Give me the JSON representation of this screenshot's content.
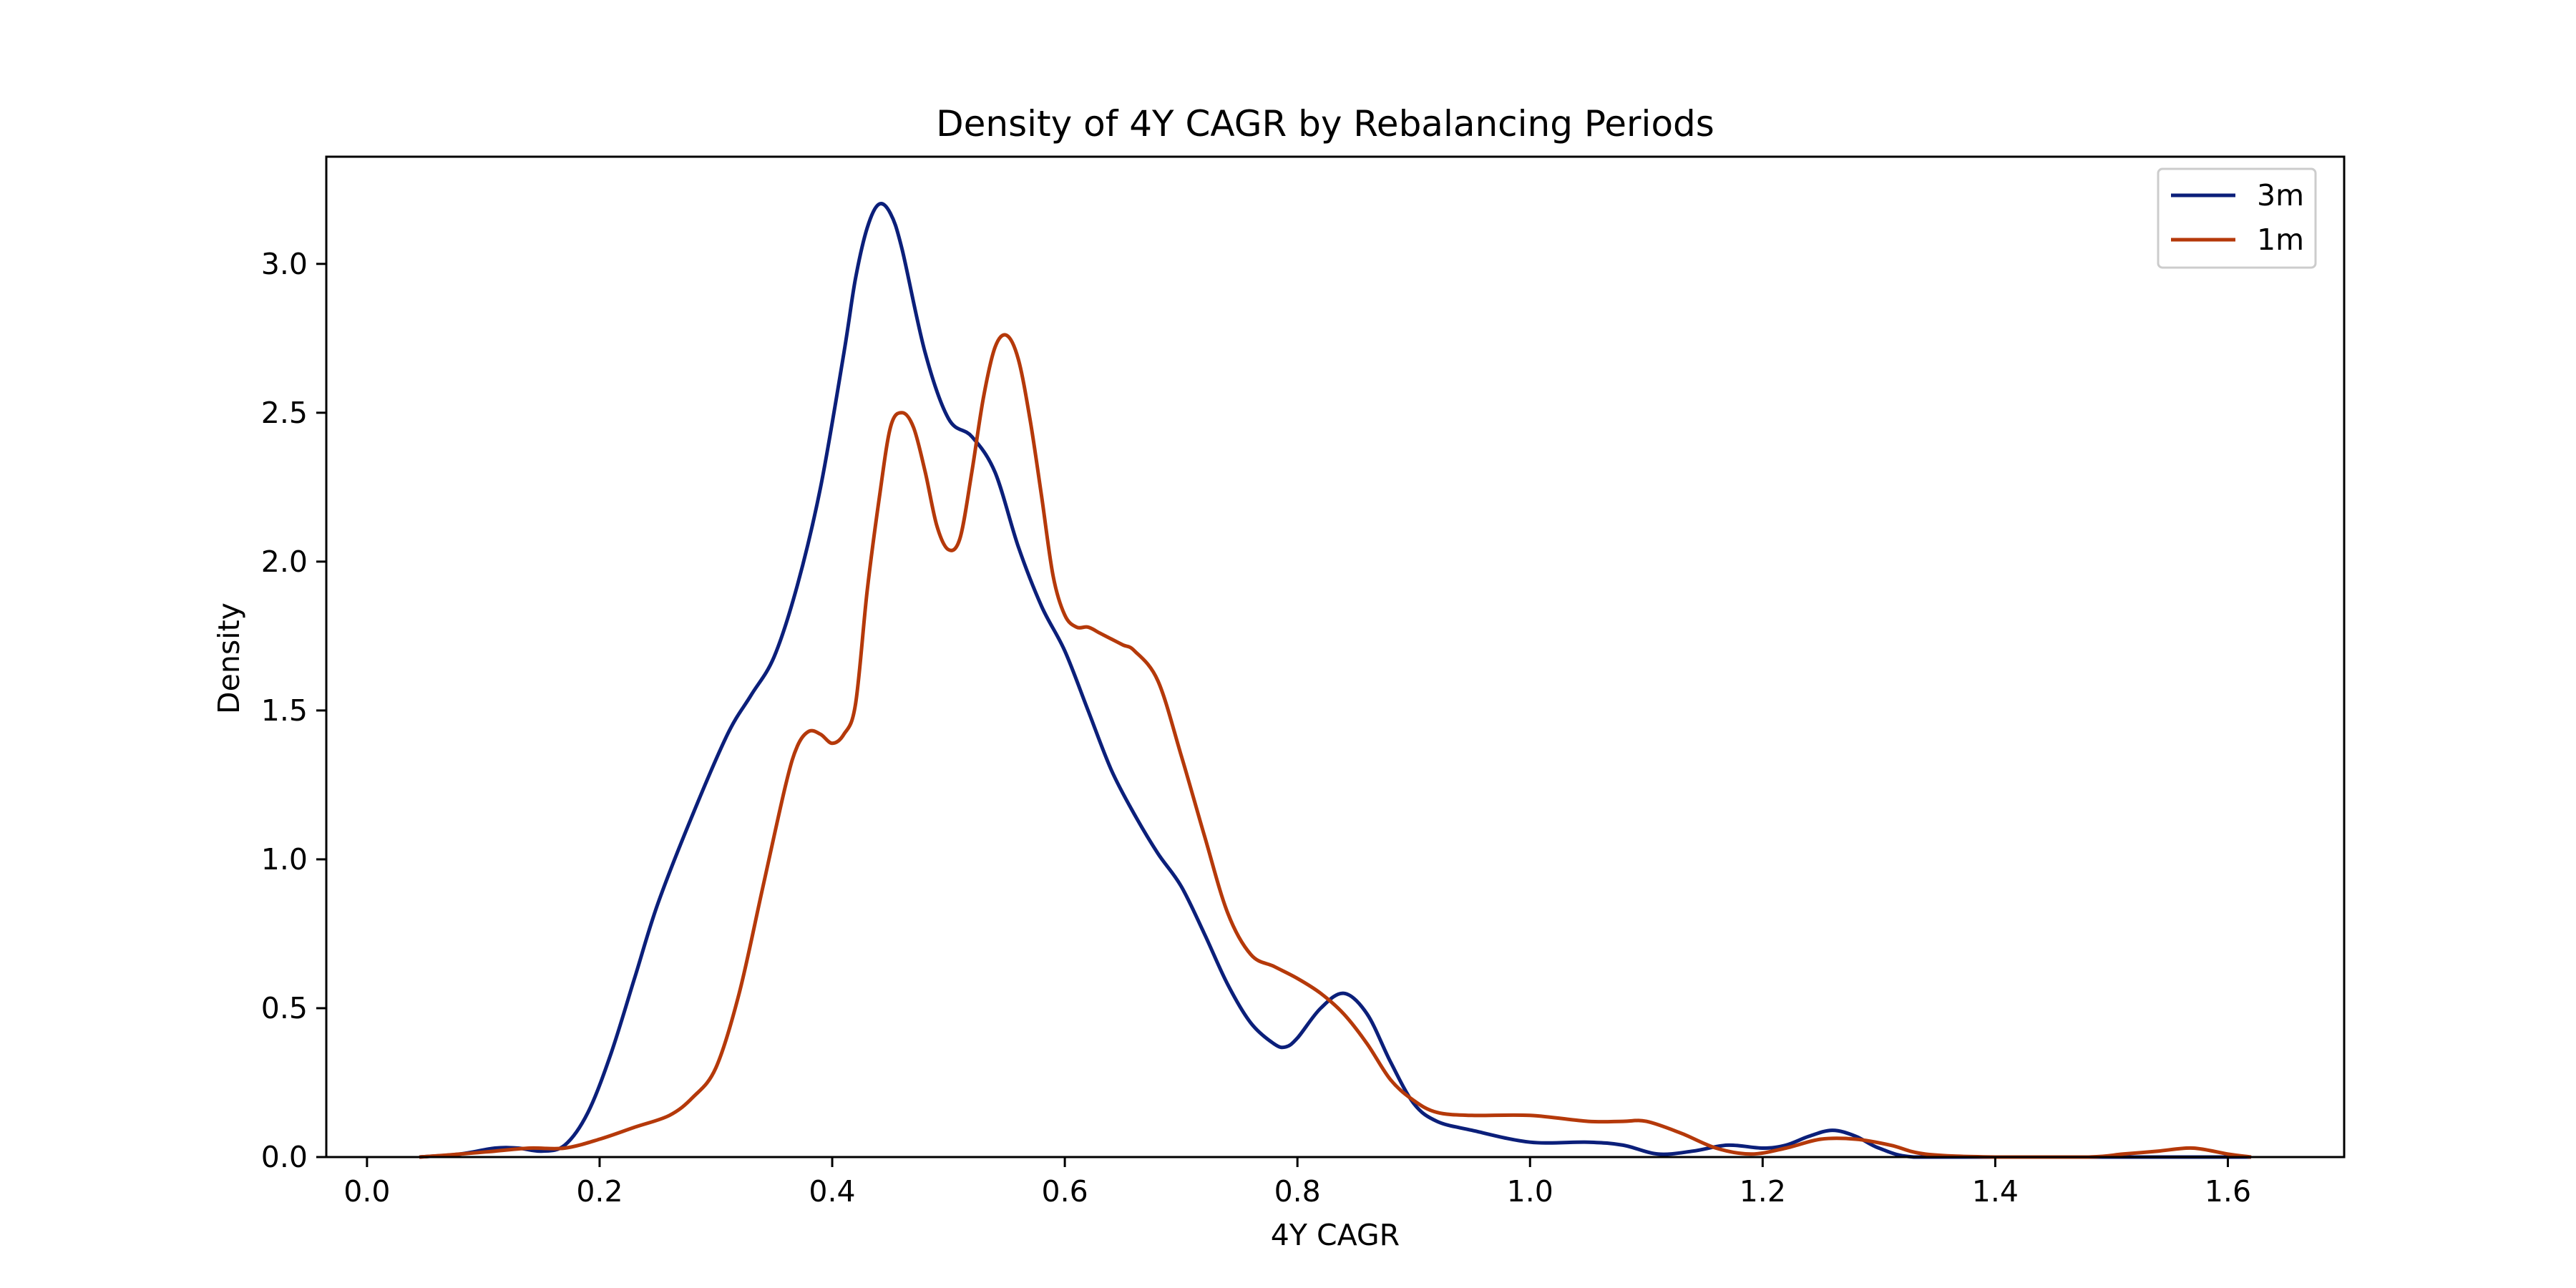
{
  "chart_data": {
    "type": "line",
    "title": "Density of 4Y CAGR by Rebalancing Periods",
    "xlabel": "4Y CAGR",
    "ylabel": "Density",
    "xlim": [
      -0.035,
      1.7
    ],
    "ylim": [
      0,
      3.36
    ],
    "xticks": [
      0.0,
      0.2,
      0.4,
      0.6,
      0.8,
      1.0,
      1.2,
      1.4,
      1.6
    ],
    "xtick_labels": [
      "0.0",
      "0.2",
      "0.4",
      "0.6",
      "0.8",
      "1.0",
      "1.2",
      "1.4",
      "1.6"
    ],
    "yticks": [
      0.0,
      0.5,
      1.0,
      1.5,
      2.0,
      2.5,
      3.0
    ],
    "ytick_labels": [
      "0.0",
      "0.5",
      "1.0",
      "1.5",
      "2.0",
      "2.5",
      "3.0"
    ],
    "grid": false,
    "legend_position": "top-right",
    "series": [
      {
        "name": "3m",
        "color": "#0b1f7a",
        "x": [
          0.045,
          0.08,
          0.11,
          0.13,
          0.15,
          0.17,
          0.19,
          0.21,
          0.23,
          0.25,
          0.28,
          0.31,
          0.33,
          0.35,
          0.37,
          0.39,
          0.41,
          0.42,
          0.43,
          0.44,
          0.45,
          0.46,
          0.48,
          0.5,
          0.52,
          0.54,
          0.56,
          0.58,
          0.6,
          0.62,
          0.64,
          0.66,
          0.68,
          0.7,
          0.72,
          0.74,
          0.76,
          0.78,
          0.79,
          0.8,
          0.82,
          0.84,
          0.86,
          0.88,
          0.9,
          0.92,
          0.95,
          1.0,
          1.05,
          1.08,
          1.11,
          1.14,
          1.17,
          1.2,
          1.22,
          1.24,
          1.26,
          1.28,
          1.3,
          1.33,
          1.4,
          1.5,
          1.62
        ],
        "y": [
          0.0,
          0.01,
          0.03,
          0.03,
          0.02,
          0.04,
          0.15,
          0.35,
          0.6,
          0.85,
          1.15,
          1.42,
          1.55,
          1.68,
          1.92,
          2.25,
          2.7,
          2.95,
          3.12,
          3.2,
          3.17,
          3.05,
          2.7,
          2.48,
          2.42,
          2.3,
          2.05,
          1.85,
          1.7,
          1.5,
          1.3,
          1.15,
          1.02,
          0.91,
          0.75,
          0.58,
          0.45,
          0.38,
          0.37,
          0.4,
          0.5,
          0.55,
          0.48,
          0.32,
          0.18,
          0.12,
          0.09,
          0.05,
          0.05,
          0.04,
          0.01,
          0.02,
          0.04,
          0.03,
          0.04,
          0.07,
          0.09,
          0.07,
          0.03,
          0.0,
          0.0,
          0.0,
          0.0
        ]
      },
      {
        "name": "1m",
        "color": "#b5390a",
        "x": [
          0.045,
          0.08,
          0.11,
          0.14,
          0.17,
          0.2,
          0.23,
          0.26,
          0.28,
          0.3,
          0.32,
          0.34,
          0.36,
          0.37,
          0.38,
          0.39,
          0.4,
          0.41,
          0.42,
          0.43,
          0.44,
          0.45,
          0.46,
          0.47,
          0.48,
          0.49,
          0.5,
          0.51,
          0.52,
          0.53,
          0.54,
          0.55,
          0.56,
          0.57,
          0.58,
          0.59,
          0.6,
          0.61,
          0.62,
          0.63,
          0.64,
          0.65,
          0.66,
          0.68,
          0.7,
          0.72,
          0.74,
          0.76,
          0.78,
          0.8,
          0.82,
          0.84,
          0.86,
          0.88,
          0.9,
          0.92,
          0.95,
          1.0,
          1.05,
          1.08,
          1.1,
          1.13,
          1.16,
          1.19,
          1.22,
          1.25,
          1.28,
          1.31,
          1.34,
          1.4,
          1.48,
          1.51,
          1.54,
          1.57,
          1.6,
          1.62
        ],
        "y": [
          0.0,
          0.01,
          0.02,
          0.03,
          0.03,
          0.06,
          0.1,
          0.14,
          0.2,
          0.3,
          0.55,
          0.9,
          1.25,
          1.38,
          1.43,
          1.42,
          1.39,
          1.42,
          1.52,
          1.9,
          2.2,
          2.45,
          2.5,
          2.45,
          2.3,
          2.12,
          2.04,
          2.08,
          2.3,
          2.55,
          2.72,
          2.76,
          2.68,
          2.48,
          2.22,
          1.95,
          1.82,
          1.78,
          1.78,
          1.76,
          1.74,
          1.72,
          1.7,
          1.6,
          1.35,
          1.08,
          0.82,
          0.68,
          0.64,
          0.6,
          0.55,
          0.48,
          0.38,
          0.26,
          0.19,
          0.15,
          0.14,
          0.14,
          0.12,
          0.12,
          0.12,
          0.08,
          0.03,
          0.01,
          0.03,
          0.06,
          0.06,
          0.04,
          0.01,
          0.0,
          0.0,
          0.01,
          0.02,
          0.03,
          0.01,
          0.0
        ]
      }
    ]
  }
}
